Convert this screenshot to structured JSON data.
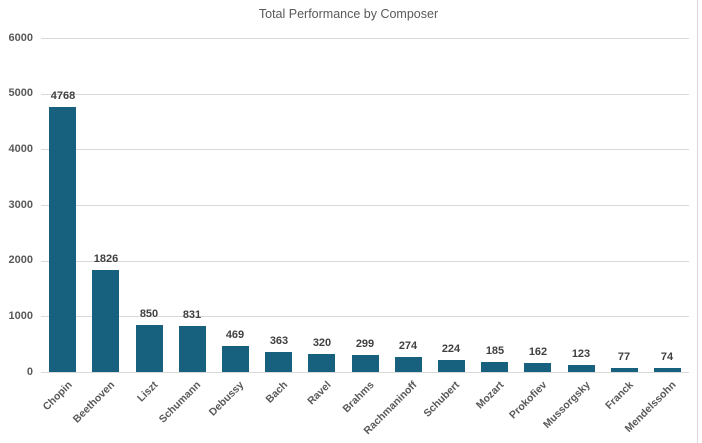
{
  "chart_data": {
    "type": "bar",
    "title": "Total Performance by Composer",
    "categories": [
      "Chopin",
      "Beethoven",
      "Liszt",
      "Schumann",
      "Debussy",
      "Bach",
      "Ravel",
      "Brahms",
      "Rachmaninoff",
      "Schubert",
      "Mozart",
      "Prokofiev",
      "Mussorgsky",
      "Franck",
      "Mendelssohn"
    ],
    "values": [
      4768,
      1826,
      850,
      831,
      469,
      363,
      320,
      299,
      274,
      224,
      185,
      162,
      123,
      77,
      74
    ],
    "xlabel": "",
    "ylabel": "",
    "ylim": [
      0,
      6000
    ],
    "yticks": [
      0,
      1000,
      2000,
      3000,
      4000,
      5000,
      6000
    ],
    "grid": true,
    "legend": false,
    "data_labels": true,
    "bar_color": "#17607E",
    "gridline_color": "#D9D9D9",
    "value_label_color": "#404040",
    "axis_label_color": "#595959",
    "title_color": "#595959",
    "background_color": "#FFFFFF",
    "border_color": "#D9D9D9"
  }
}
